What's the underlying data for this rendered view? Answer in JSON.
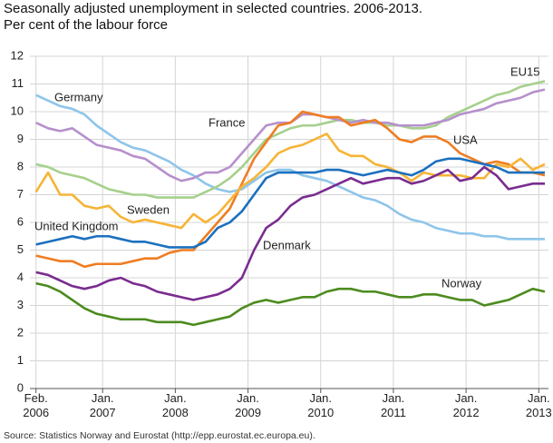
{
  "chart_data": {
    "type": "line",
    "title": "Seasonally adjusted unemployment in selected countries. 2006-2013.",
    "subtitle": "Per cent of the labour force",
    "source": "Source: Statistics Norway and Eurostat (http://epp.eurostat.ec.europa.eu).",
    "x": [
      "2006-02",
      "2006-04",
      "2006-06",
      "2006-08",
      "2006-10",
      "2006-12",
      "2007-02",
      "2007-04",
      "2007-06",
      "2007-08",
      "2007-10",
      "2007-12",
      "2008-02",
      "2008-04",
      "2008-06",
      "2008-08",
      "2008-10",
      "2008-12",
      "2009-02",
      "2009-04",
      "2009-06",
      "2009-08",
      "2009-10",
      "2009-12",
      "2010-02",
      "2010-04",
      "2010-06",
      "2010-08",
      "2010-10",
      "2010-12",
      "2011-02",
      "2011-04",
      "2011-06",
      "2011-08",
      "2011-10",
      "2011-12",
      "2012-02",
      "2012-04",
      "2012-06",
      "2012-08",
      "2012-10",
      "2012-12",
      "2013-02"
    ],
    "xlim": [
      "2006-01",
      "2013-02"
    ],
    "xticks": [
      {
        "value": "2006-02",
        "label": "Feb. 2006"
      },
      {
        "value": "2007-01",
        "label": "Jan. 2007"
      },
      {
        "value": "2008-01",
        "label": "Jan. 2008"
      },
      {
        "value": "2009-01",
        "label": "Jan. 2009"
      },
      {
        "value": "2010-01",
        "label": "Jan. 2010"
      },
      {
        "value": "2011-01",
        "label": "Jan. 2011"
      },
      {
        "value": "2012-01",
        "label": "Jan. 2012"
      },
      {
        "value": "2013-01",
        "label": "Jan. 2013"
      }
    ],
    "ylim": [
      0,
      12
    ],
    "yticks": [
      0,
      1,
      2,
      3,
      4,
      5,
      6,
      7,
      8,
      9,
      10,
      11,
      12
    ],
    "grid": true,
    "series": [
      {
        "name": "Germany",
        "color": "#8ec5ea",
        "values": [
          10.6,
          10.4,
          10.2,
          10.1,
          9.9,
          9.5,
          9.2,
          8.9,
          8.7,
          8.6,
          8.4,
          8.2,
          7.9,
          7.7,
          7.4,
          7.2,
          7.1,
          7.2,
          7.5,
          7.8,
          7.9,
          7.9,
          7.7,
          7.6,
          7.5,
          7.3,
          7.1,
          6.9,
          6.8,
          6.6,
          6.3,
          6.1,
          6.0,
          5.8,
          5.7,
          5.6,
          5.6,
          5.5,
          5.5,
          5.4,
          5.4,
          5.4,
          5.4
        ]
      },
      {
        "name": "EU15",
        "color": "#a6d08c",
        "values": [
          8.1,
          8.0,
          7.8,
          7.7,
          7.6,
          7.4,
          7.2,
          7.1,
          7.0,
          7.0,
          6.9,
          6.9,
          6.9,
          6.9,
          7.1,
          7.3,
          7.6,
          8.0,
          8.5,
          9.0,
          9.2,
          9.4,
          9.5,
          9.5,
          9.6,
          9.7,
          9.7,
          9.6,
          9.6,
          9.5,
          9.5,
          9.4,
          9.4,
          9.5,
          9.8,
          10.0,
          10.2,
          10.4,
          10.6,
          10.7,
          10.9,
          11.0,
          11.1
        ]
      },
      {
        "name": "France",
        "color": "#b690cc",
        "values": [
          9.6,
          9.4,
          9.3,
          9.4,
          9.1,
          8.8,
          8.7,
          8.6,
          8.4,
          8.3,
          8.0,
          7.7,
          7.5,
          7.6,
          7.8,
          7.8,
          8.0,
          8.5,
          9.0,
          9.5,
          9.6,
          9.6,
          9.9,
          9.9,
          9.8,
          9.7,
          9.6,
          9.7,
          9.6,
          9.6,
          9.5,
          9.5,
          9.5,
          9.6,
          9.7,
          9.9,
          10.0,
          10.1,
          10.3,
          10.4,
          10.5,
          10.7,
          10.8
        ]
      },
      {
        "name": "USA",
        "color": "#ef7d22",
        "values": [
          4.8,
          4.7,
          4.6,
          4.6,
          4.4,
          4.5,
          4.5,
          4.5,
          4.6,
          4.7,
          4.7,
          4.9,
          5.0,
          5.0,
          5.5,
          6.0,
          6.5,
          7.4,
          8.3,
          8.9,
          9.5,
          9.6,
          10.0,
          9.9,
          9.8,
          9.8,
          9.5,
          9.6,
          9.7,
          9.4,
          9.0,
          8.9,
          9.1,
          9.1,
          8.9,
          8.5,
          8.3,
          8.1,
          8.2,
          8.1,
          7.8,
          7.8,
          7.7
        ]
      },
      {
        "name": "Sweden",
        "color": "#f6b436",
        "values": [
          7.1,
          7.8,
          7.0,
          7.0,
          6.6,
          6.5,
          6.6,
          6.2,
          6.0,
          6.1,
          6.0,
          5.9,
          5.8,
          6.3,
          6.0,
          6.3,
          6.8,
          7.3,
          7.6,
          8.0,
          8.5,
          8.7,
          8.8,
          9.0,
          9.2,
          8.6,
          8.4,
          8.4,
          8.1,
          8.0,
          7.8,
          7.5,
          7.8,
          7.7,
          7.7,
          7.7,
          7.6,
          7.6,
          8.1,
          8.0,
          8.3,
          7.9,
          8.1
        ]
      },
      {
        "name": "United Kingdom",
        "color": "#1c70bf",
        "values": [
          5.2,
          5.3,
          5.4,
          5.5,
          5.4,
          5.5,
          5.5,
          5.4,
          5.3,
          5.3,
          5.2,
          5.1,
          5.1,
          5.1,
          5.3,
          5.8,
          6.0,
          6.4,
          7.0,
          7.6,
          7.8,
          7.8,
          7.8,
          7.8,
          7.9,
          7.9,
          7.8,
          7.7,
          7.8,
          7.9,
          7.8,
          7.7,
          7.9,
          8.2,
          8.3,
          8.3,
          8.2,
          8.1,
          8.0,
          7.8,
          7.8,
          7.8,
          7.8
        ]
      },
      {
        "name": "Denmark",
        "color": "#7a2c8f",
        "values": [
          4.2,
          4.1,
          3.9,
          3.7,
          3.6,
          3.7,
          3.9,
          4.0,
          3.8,
          3.7,
          3.5,
          3.4,
          3.3,
          3.2,
          3.3,
          3.4,
          3.6,
          4.0,
          5.0,
          5.8,
          6.1,
          6.6,
          6.9,
          7.0,
          7.2,
          7.4,
          7.6,
          7.4,
          7.5,
          7.6,
          7.6,
          7.4,
          7.5,
          7.7,
          7.9,
          7.5,
          7.6,
          8.0,
          7.7,
          7.2,
          7.3,
          7.4,
          7.4
        ]
      },
      {
        "name": "Norway",
        "color": "#4d8b1f",
        "values": [
          3.8,
          3.7,
          3.5,
          3.2,
          2.9,
          2.7,
          2.6,
          2.5,
          2.5,
          2.5,
          2.4,
          2.4,
          2.4,
          2.3,
          2.4,
          2.5,
          2.6,
          2.9,
          3.1,
          3.2,
          3.1,
          3.2,
          3.3,
          3.3,
          3.5,
          3.6,
          3.6,
          3.5,
          3.5,
          3.4,
          3.3,
          3.3,
          3.4,
          3.4,
          3.3,
          3.2,
          3.2,
          3.0,
          3.1,
          3.2,
          3.4,
          3.6,
          3.5
        ]
      }
    ]
  }
}
